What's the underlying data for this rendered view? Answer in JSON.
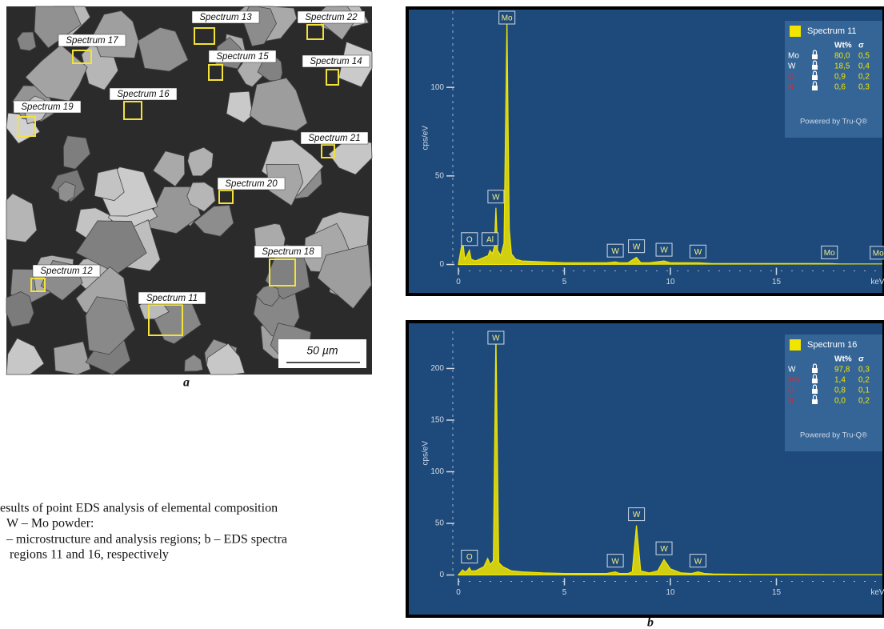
{
  "figure_a": {
    "label": "a",
    "regions": [
      "Spectrum 13",
      "Spectrum 22",
      "Spectrum 17",
      "Spectrum 15",
      "Spectrum 14",
      "Spectrum 16",
      "Spectrum 19",
      "Spectrum 21",
      "Spectrum 20",
      "Spectrum 18",
      "Spectrum 12",
      "Spectrum 11"
    ],
    "scale_bar": "50 µm"
  },
  "caption": [
    "esults of point EDS analysis of elemental composition",
    "W – Mo powder:",
    "– microstructure and analysis regions; b – EDS spectra",
    "regions 11 and 16, respectively"
  ],
  "figure_b": {
    "label": "b"
  },
  "chart_data": [
    {
      "type": "line",
      "x": [
        0,
        0.2,
        0.3,
        0.4,
        0.52,
        0.6,
        0.8,
        1.0,
        1.2,
        1.4,
        1.49,
        1.6,
        1.7,
        1.77,
        1.85,
        2.0,
        2.15,
        2.29,
        2.4,
        2.5,
        2.7,
        3,
        4,
        5,
        6,
        7,
        7.4,
        7.6,
        8,
        8.4,
        8.6,
        9,
        9.7,
        10,
        11,
        11.3,
        12,
        14,
        16,
        17.5,
        18,
        20
      ],
      "series": [
        {
          "name": "Spectrum 11",
          "color": "#f2e600",
          "values": [
            0,
            14,
            3,
            5,
            8,
            3,
            2,
            3,
            4,
            5,
            8,
            6,
            10,
            32,
            8,
            5,
            12,
            138,
            20,
            6,
            3,
            2,
            1.5,
            1,
            1,
            1,
            1.5,
            1,
            1,
            4,
            1,
            1,
            2,
            1,
            1,
            1,
            0.5,
            0.5,
            0.5,
            0.5,
            0.3,
            0.3
          ]
        }
      ],
      "xlim": [
        0,
        20
      ],
      "ylim": [
        -7,
        143
      ],
      "xticks": [
        0,
        5,
        10,
        15
      ],
      "yticks": [
        0,
        50,
        100
      ],
      "x_label": "keV",
      "y_label": "cps/eV",
      "peaks": [
        {
          "label": "Mo",
          "x": 2.29
        },
        {
          "label": "O",
          "x": 0.52
        },
        {
          "label": "Al",
          "x": 1.49
        },
        {
          "label": "W",
          "x": 1.77
        },
        {
          "label": "W",
          "x": 7.4
        },
        {
          "label": "W",
          "x": 8.4
        },
        {
          "label": "W",
          "x": 9.7
        },
        {
          "label": "W",
          "x": 11.3
        },
        {
          "label": "Mo",
          "x": 17.5
        },
        {
          "label": "Mo",
          "x": 19.8
        }
      ],
      "results": {
        "columns": [
          "Wt%",
          "σ"
        ],
        "rows": [
          {
            "element": "Mo",
            "color": "#ffffff",
            "values": [
              "80,0",
              "0,5"
            ]
          },
          {
            "element": "W",
            "color": "#ffffff",
            "values": [
              "18,5",
              "0,4"
            ]
          },
          {
            "element": "O",
            "color": "#e0282e",
            "values": [
              "0,9",
              "0,2"
            ]
          },
          {
            "element": "N",
            "color": "#e0282e",
            "values": [
              "0,6",
              "0,3"
            ]
          }
        ],
        "footer": "Powered by Tru-Q®"
      }
    },
    {
      "type": "line",
      "x": [
        0,
        0.2,
        0.3,
        0.4,
        0.52,
        0.6,
        0.8,
        1.0,
        1.2,
        1.38,
        1.5,
        1.65,
        1.77,
        1.9,
        2.1,
        2.3,
        2.5,
        3,
        4,
        5,
        6,
        7,
        7.4,
        7.6,
        8,
        8.2,
        8.4,
        8.6,
        9,
        9.4,
        9.7,
        10,
        10.5,
        11,
        11.3,
        11.6,
        12,
        14,
        16,
        18,
        20
      ],
      "series": [
        {
          "name": "Spectrum 16",
          "color": "#f2e600",
          "values": [
            0,
            5,
            3,
            4,
            7,
            4,
            4,
            6,
            8,
            16,
            10,
            14,
            234,
            12,
            8,
            6,
            4,
            3,
            2,
            1.5,
            1.5,
            1.5,
            3,
            1.5,
            1.5,
            3,
            48,
            4,
            2,
            4,
            15,
            6,
            2,
            1.5,
            3,
            1.5,
            1,
            0.5,
            0.5,
            0.3,
            0.3
          ]
        }
      ],
      "xlim": [
        0,
        20
      ],
      "ylim": [
        -12,
        236
      ],
      "xticks": [
        0,
        5,
        10,
        15
      ],
      "yticks": [
        0,
        50,
        100,
        150,
        200
      ],
      "x_label": "keV",
      "y_label": "cps/eV",
      "peaks": [
        {
          "label": "W",
          "x": 1.77
        },
        {
          "label": "O",
          "x": 0.52
        },
        {
          "label": "W",
          "x": 7.4
        },
        {
          "label": "W",
          "x": 8.4
        },
        {
          "label": "W",
          "x": 9.7
        },
        {
          "label": "W",
          "x": 11.3
        }
      ],
      "results": {
        "columns": [
          "Wt%",
          "σ"
        ],
        "rows": [
          {
            "element": "W",
            "color": "#ffffff",
            "values": [
              "97,8",
              "0,3"
            ]
          },
          {
            "element": "Mo",
            "color": "#e0282e",
            "values": [
              "1,4",
              "0,2"
            ]
          },
          {
            "element": "O",
            "color": "#e0282e",
            "values": [
              "0,8",
              "0,1"
            ]
          },
          {
            "element": "N",
            "color": "#e0282e",
            "values": [
              "0,0",
              "0,2"
            ]
          }
        ],
        "footer": "Powered by Tru-Q®"
      }
    }
  ]
}
